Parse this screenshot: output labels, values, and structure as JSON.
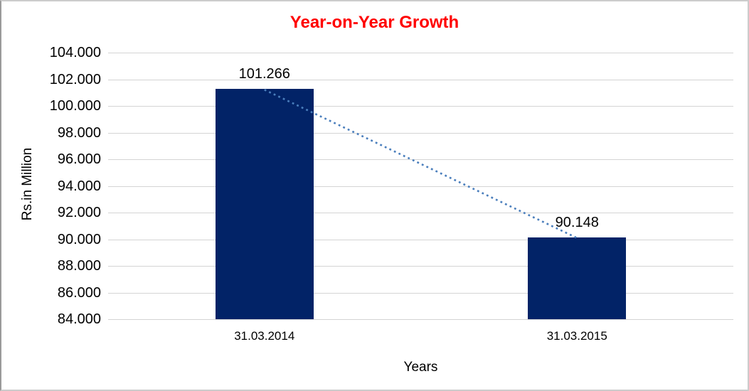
{
  "chart_data": {
    "type": "bar",
    "title": "Year-on-Year Growth",
    "xlabel": "Years",
    "ylabel": "Rs.in Million",
    "categories": [
      "31.03.2014",
      "31.03.2015"
    ],
    "values": [
      101.266,
      90.148
    ],
    "data_labels": [
      "101.266",
      "90.148"
    ],
    "ylim": [
      84,
      104
    ],
    "ytick_step": 2,
    "ytick_labels": [
      "104.000",
      "102.000",
      "100.000",
      "98.000",
      "96.000",
      "94.000",
      "92.000",
      "90.000",
      "88.000",
      "86.000",
      "84.000"
    ],
    "grid": true,
    "legend": "none",
    "trendline": {
      "style": "dotted",
      "color": "#4a7ebc",
      "connects": [
        "top-of-bar-31.03.2014",
        "top-of-bar-31.03.2015"
      ]
    },
    "colors": {
      "bar": "#022367",
      "title": "#ff0000",
      "gridline": "#d4d4d4",
      "text": "#000000",
      "background": "#ffffff",
      "frame_border": "#c9c9c9"
    }
  }
}
